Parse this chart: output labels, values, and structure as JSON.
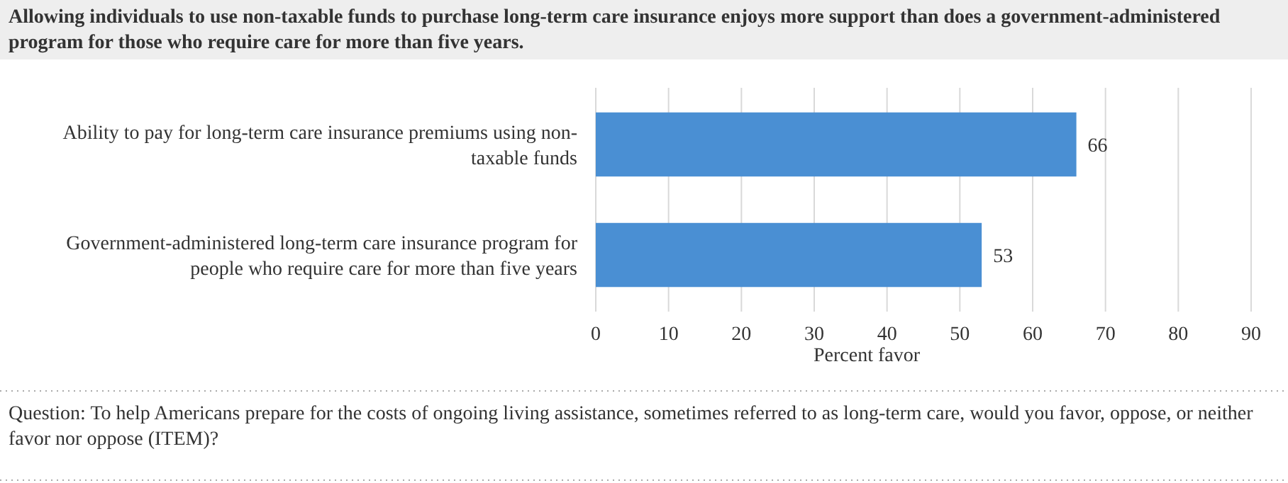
{
  "chart_data": {
    "type": "bar",
    "orientation": "horizontal",
    "title": "Allowing individuals to use non-taxable funds to purchase long-term care insurance enjoys more support than does a government-administered program for those who require care for more than five years.",
    "categories": [
      "Ability to pay for long-term care insurance premiums using non-taxable funds",
      "Government-administered long-term care insurance program for people who require care for more than five years"
    ],
    "values": [
      66,
      53
    ],
    "color": "#4a8fd3",
    "data_labels": true,
    "xlim": [
      0,
      90
    ],
    "xticks": [
      0,
      10,
      20,
      30,
      40,
      50,
      60,
      70,
      80,
      90
    ],
    "grid": "x",
    "xlabel": "Percent favor",
    "annotations": [
      "Question: To help Americans prepare for the costs of ongoing living assistance, sometimes referred to as long-term care, would you favor, oppose, or neither favor nor oppose (ITEM)?"
    ]
  }
}
